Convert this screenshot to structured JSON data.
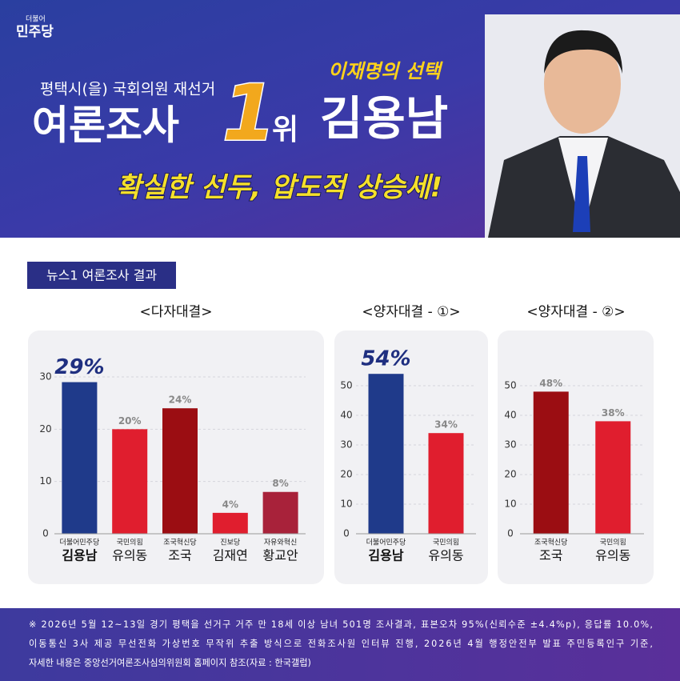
{
  "header": {
    "logo_small": "더불어",
    "logo": "민주당",
    "subtitle": "평택시(을) 국회의원 재선거",
    "headline": "여론조사",
    "rank": "1",
    "rank_suffix": "위",
    "tagline": "이재명의 선택",
    "candidate": "김용남",
    "slogan": "확실한 선두, 압도적 상승세!"
  },
  "section_label": "뉴스1 여론조사 결과",
  "chart_data": [
    {
      "type": "bar",
      "title": "<다자대결>",
      "categories": [
        "김용남",
        "유의동",
        "조국",
        "김재연",
        "황교안"
      ],
      "parties": [
        "더불어민주당",
        "국민의힘",
        "조국혁신당",
        "진보당",
        "자유와혁신"
      ],
      "values": [
        29,
        20,
        24,
        4,
        8
      ],
      "value_labels": [
        "29%",
        "20%",
        "24%",
        "4%",
        "8%"
      ],
      "colors": [
        "#1f3a8a",
        "#e01e2e",
        "#9b0d12",
        "#e01e2e",
        "#a8223a"
      ],
      "ylim": [
        0,
        30
      ],
      "yticks": [
        0,
        10,
        20,
        30
      ],
      "grid": true
    },
    {
      "type": "bar",
      "title": "<양자대결 - ①>",
      "categories": [
        "김용남",
        "유의동"
      ],
      "parties": [
        "더불어민주당",
        "국민의힘"
      ],
      "values": [
        54,
        34
      ],
      "value_labels": [
        "54%",
        "34%"
      ],
      "colors": [
        "#1f3a8a",
        "#e01e2e"
      ],
      "ylim": [
        0,
        55
      ],
      "yticks": [
        0,
        10,
        20,
        30,
        40,
        50
      ],
      "grid": true
    },
    {
      "type": "bar",
      "title": "<양자대결 - ②>",
      "categories": [
        "조국",
        "유의동"
      ],
      "parties": [
        "조국혁신당",
        "국민의힘"
      ],
      "values": [
        48,
        38
      ],
      "value_labels": [
        "48%",
        "38%"
      ],
      "colors": [
        "#9b0d12",
        "#e01e2e"
      ],
      "ylim": [
        0,
        55
      ],
      "yticks": [
        0,
        10,
        20,
        30,
        40,
        50
      ],
      "grid": true
    }
  ],
  "footer": [
    "※ 2026년 5월 12~13일 경기 평택을 선거구 거주 만 18세 이상 남녀 501명 조사결과, 표본오차 95%(신뢰수준 ±4.4%p), 응답률 10.0%,",
    "이동통신 3사 제공 무선전화 가상번호 무작위 추출 방식으로 전화조사원 인터뷰 진행, 2026년 4월 행정안전부 발표 주민등록인구 기준,",
    "자세한 내용은 중앙선거여론조사심의위원회 홈페이지 참조(자료 : 한국갤럽)"
  ]
}
